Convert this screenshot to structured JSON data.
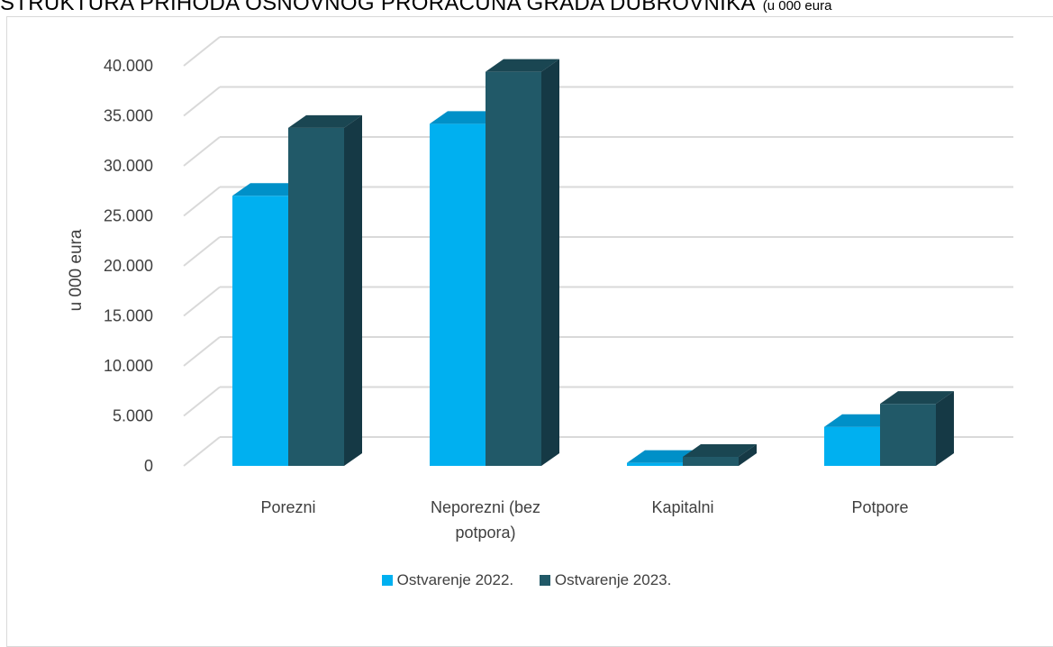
{
  "title": {
    "main": "STRUKTURA PRIHODA OSNOVNOG PRORAČUNA GRADA DUBROVNIKA",
    "unit": "(u 000 eura"
  },
  "colors": {
    "series_2022": "#00b0f0",
    "series_2023": "#215968",
    "gridline": "#d9d9d9",
    "axis_text": "#404040"
  },
  "chart_data": {
    "type": "bar",
    "style": "3d-clustered-column",
    "title": "STRUKTURA PRIHODA OSNOVNOG PRORAČUNA GRADA DUBROVNIKA",
    "ylabel": "u 000 eura",
    "xlabel": "",
    "ylim": [
      0,
      40000
    ],
    "yticks": [
      "0",
      "5.000",
      "10.000",
      "15.000",
      "20.000",
      "25.000",
      "30.000",
      "35.000",
      "40.000"
    ],
    "grid": true,
    "legend_position": "bottom",
    "categories": [
      "Porezni",
      "Neporezni (bez potpora)",
      "Kapitalni",
      "Potpore"
    ],
    "series": [
      {
        "name": "Ostvarenje 2022.",
        "values": [
          27000,
          34200,
          300,
          3900
        ]
      },
      {
        "name": "Ostvarenje 2023.",
        "values": [
          33800,
          39400,
          900,
          6200
        ]
      }
    ]
  }
}
